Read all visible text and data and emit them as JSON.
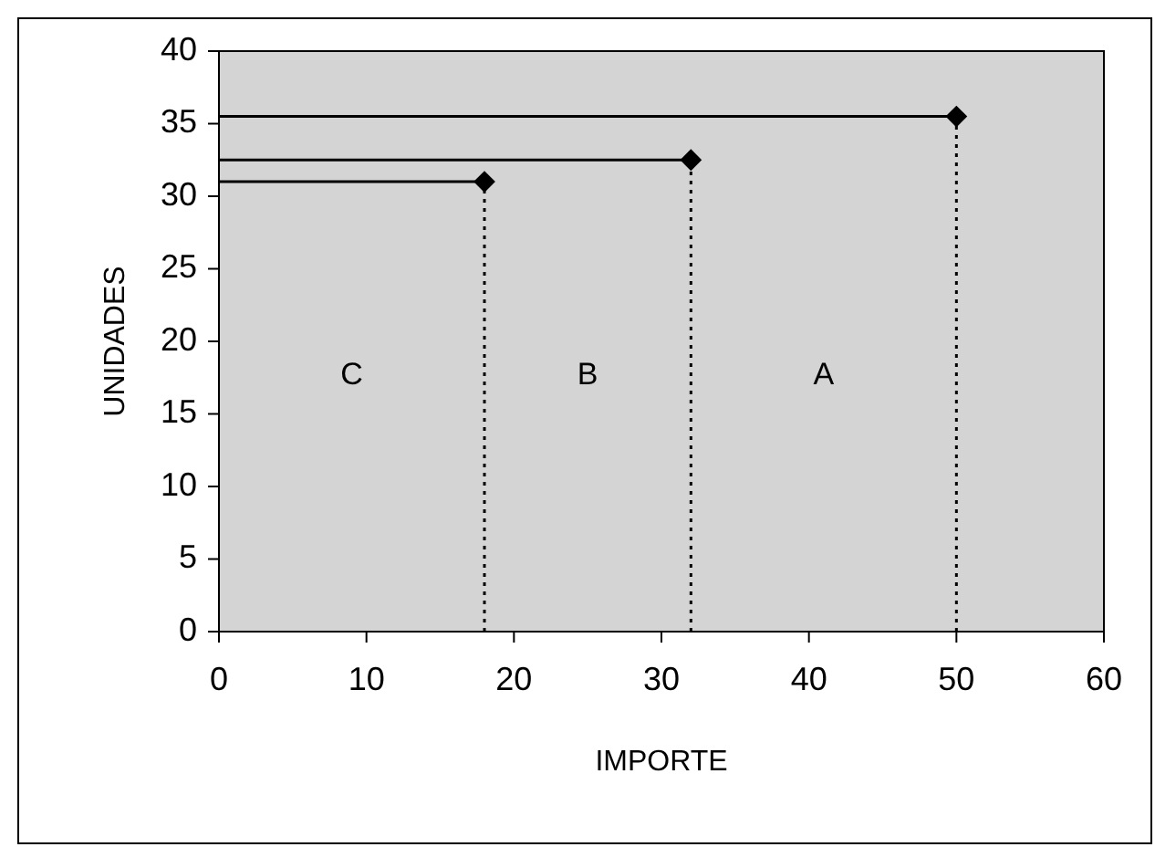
{
  "chart_data": {
    "type": "scatter",
    "xlabel": "IMPORTE",
    "ylabel": "UNIDADES",
    "xlim": [
      0,
      60
    ],
    "xticks": [
      0,
      10,
      20,
      30,
      40,
      50,
      60
    ],
    "ylim": [
      0,
      40
    ],
    "yticks": [
      0,
      5,
      10,
      15,
      20,
      25,
      30,
      35,
      40
    ],
    "grid": false,
    "marker": "diamond",
    "series": [
      {
        "color": "#000000",
        "x": [
          18,
          32,
          50
        ],
        "values": [
          31,
          32.5,
          35.5
        ]
      }
    ],
    "ref_lines": [
      {
        "axis": "y",
        "value": 31,
        "line_style": "solid"
      },
      {
        "axis": "y",
        "value": 32.5,
        "line_style": "solid"
      },
      {
        "axis": "y",
        "value": 35.5,
        "line_style": "solid"
      },
      {
        "axis": "x",
        "value": 18,
        "line_style": "dotted"
      },
      {
        "axis": "x",
        "value": 32,
        "line_style": "dotted"
      },
      {
        "axis": "x",
        "value": 50,
        "line_style": "dotted"
      }
    ],
    "annotations": [
      "C",
      "B",
      "A"
    ]
  }
}
